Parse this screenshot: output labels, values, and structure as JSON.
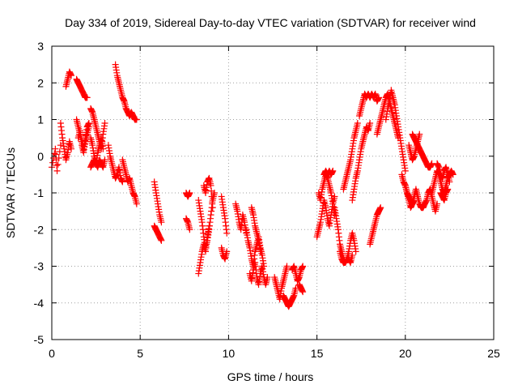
{
  "chart_data": {
    "type": "scatter",
    "title": "Day 334 of 2019, Sidereal Day-to-day VTEC variation (SDTVAR) for receiver wind",
    "xlabel": "GPS time / hours",
    "ylabel": "SDTVAR / TECUs",
    "xlim": [
      0,
      25
    ],
    "ylim": [
      -5,
      3
    ],
    "xticks": [
      0,
      5,
      10,
      15,
      20,
      25
    ],
    "yticks": [
      -5,
      -4,
      -3,
      -2,
      -1,
      0,
      1,
      2,
      3
    ],
    "grid": true,
    "marker": "+",
    "color": "#ff0000",
    "series_segments": [
      {
        "x": [
          0.0,
          0.2,
          0.3,
          0.5
        ],
        "y": [
          -0.3,
          0.2,
          -0.4,
          0.3
        ]
      },
      {
        "x": [
          0.5,
          0.6,
          0.7,
          0.8,
          0.9,
          1.0,
          1.1
        ],
        "y": [
          0.9,
          0.5,
          0.2,
          -0.1,
          0.1,
          0.4,
          0.2
        ]
      },
      {
        "x": [
          0.8,
          0.9,
          1.0,
          1.1
        ],
        "y": [
          1.9,
          2.1,
          2.3,
          2.2
        ]
      },
      {
        "x": [
          1.4,
          1.5,
          1.6,
          1.7,
          1.8,
          1.9,
          2.0
        ],
        "y": [
          2.1,
          2.0,
          1.9,
          1.8,
          1.7,
          1.6,
          1.6
        ]
      },
      {
        "x": [
          1.4,
          1.5,
          1.6,
          1.7,
          1.8,
          1.9,
          2.0,
          2.1
        ],
        "y": [
          1.0,
          0.8,
          0.6,
          0.4,
          0.2,
          0.5,
          0.8,
          0.9
        ]
      },
      {
        "x": [
          1.5,
          1.6,
          1.7,
          1.8,
          1.9,
          2.0,
          2.1
        ],
        "y": [
          0.5,
          0.7,
          0.3,
          0.1,
          0.4,
          0.6,
          0.8
        ]
      },
      {
        "x": [
          2.2,
          2.3,
          2.4,
          2.5,
          2.6,
          2.7,
          2.8,
          2.9,
          3.0
        ],
        "y": [
          1.3,
          1.2,
          1.0,
          0.8,
          0.6,
          0.4,
          0.2,
          0.6,
          0.9
        ]
      },
      {
        "x": [
          2.2,
          2.3,
          2.4,
          2.5,
          2.6,
          2.7,
          2.8,
          2.9
        ],
        "y": [
          0.5,
          0.3,
          0.0,
          -0.2,
          0.1,
          0.3,
          0.5,
          0.2
        ]
      },
      {
        "x": [
          2.2,
          2.3,
          2.4,
          2.5,
          2.6,
          2.7,
          2.8,
          2.9,
          3.0
        ],
        "y": [
          -0.3,
          -0.2,
          -0.1,
          -0.2,
          -0.3,
          -0.1,
          -0.2,
          -0.3,
          -0.1
        ]
      },
      {
        "x": [
          3.2,
          3.3,
          3.4,
          3.5,
          3.6,
          3.7,
          3.8,
          3.9,
          4.0
        ],
        "y": [
          0.3,
          0.0,
          -0.2,
          -0.4,
          -0.6,
          -0.5,
          -0.3,
          -0.6,
          -0.7
        ]
      },
      {
        "x": [
          3.6,
          3.7,
          3.8,
          3.9,
          4.0,
          4.1,
          4.2
        ],
        "y": [
          2.5,
          2.2,
          2.0,
          1.8,
          1.6,
          1.5,
          1.3
        ]
      },
      {
        "x": [
          4.2,
          4.3,
          4.4,
          4.5,
          4.6,
          4.7,
          4.8
        ],
        "y": [
          1.3,
          1.2,
          1.1,
          1.2,
          1.1,
          1.0,
          1.0
        ]
      },
      {
        "x": [
          4.0,
          4.1,
          4.2,
          4.3,
          4.4,
          4.5,
          4.6,
          4.7,
          4.8
        ],
        "y": [
          -0.1,
          -0.3,
          -0.5,
          -0.7,
          -0.6,
          -0.8,
          -1.0,
          -1.1,
          -1.3
        ]
      },
      {
        "x": [
          5.8,
          5.9,
          6.0,
          6.1,
          6.2
        ],
        "y": [
          -0.7,
          -1.0,
          -1.3,
          -1.6,
          -1.8
        ]
      },
      {
        "x": [
          5.8,
          5.9,
          6.0,
          6.1,
          6.2
        ],
        "y": [
          -1.9,
          -2.0,
          -2.1,
          -2.2,
          -2.3
        ]
      },
      {
        "x": [
          7.6,
          7.7,
          7.8
        ],
        "y": [
          -1.0,
          -1.1,
          -1.0
        ]
      },
      {
        "x": [
          7.6,
          7.7,
          7.8
        ],
        "y": [
          -1.7,
          -1.8,
          -2.0
        ]
      },
      {
        "x": [
          8.3,
          8.4,
          8.5,
          8.6,
          8.7,
          8.8,
          8.9,
          9.0,
          9.1,
          9.2
        ],
        "y": [
          -1.2,
          -1.5,
          -1.8,
          -2.2,
          -2.5,
          -2.3,
          -2.0,
          -1.6,
          -1.2,
          -1.0
        ]
      },
      {
        "x": [
          8.6,
          8.7,
          8.8,
          8.9,
          9.0,
          9.1
        ],
        "y": [
          -0.8,
          -1.0,
          -0.7,
          -0.6,
          -0.8,
          -1.4
        ]
      },
      {
        "x": [
          8.3,
          8.4,
          8.5,
          8.6,
          8.7,
          8.8,
          8.9
        ],
        "y": [
          -3.2,
          -2.9,
          -2.6,
          -2.4,
          -2.6,
          -2.2,
          -1.9
        ]
      },
      {
        "x": [
          9.6,
          9.7,
          9.8,
          9.9
        ],
        "y": [
          -1.1,
          -1.4,
          -1.7,
          -2.1
        ]
      },
      {
        "x": [
          9.6,
          9.7,
          9.8,
          9.9
        ],
        "y": [
          -2.5,
          -2.7,
          -2.8,
          -2.6
        ]
      },
      {
        "x": [
          10.4,
          10.5,
          10.6,
          10.7,
          10.8,
          10.9,
          11.0
        ],
        "y": [
          -1.3,
          -1.5,
          -1.8,
          -2.0,
          -1.6,
          -1.8,
          -2.1
        ]
      },
      {
        "x": [
          11.0,
          11.1,
          11.2,
          11.3,
          11.4,
          11.5,
          11.6,
          11.7,
          11.8,
          11.9,
          12.0
        ],
        "y": [
          -2.0,
          -2.3,
          -2.5,
          -2.8,
          -3.0,
          -2.6,
          -2.4,
          -2.2,
          -2.5,
          -2.7,
          -3.0
        ]
      },
      {
        "x": [
          11.2,
          11.3,
          11.4,
          11.5,
          11.6,
          11.7,
          11.8,
          11.9,
          12.0,
          12.1,
          12.2
        ],
        "y": [
          -3.2,
          -3.4,
          -3.1,
          -2.9,
          -3.3,
          -3.5,
          -3.2,
          -3.0,
          -3.3,
          -3.5,
          -3.3
        ]
      },
      {
        "x": [
          11.3,
          11.4,
          11.5,
          11.6,
          11.7,
          11.8
        ],
        "y": [
          -1.4,
          -1.6,
          -1.9,
          -2.1,
          -2.3,
          -2.6
        ]
      },
      {
        "x": [
          12.6,
          12.7,
          12.8,
          12.9,
          13.0,
          13.1,
          13.2,
          13.3
        ],
        "y": [
          -3.3,
          -3.5,
          -3.7,
          -3.9,
          -3.6,
          -3.4,
          -3.2,
          -3.0
        ]
      },
      {
        "x": [
          13.1,
          13.2,
          13.3,
          13.4,
          13.5,
          13.6,
          13.7,
          13.8
        ],
        "y": [
          -3.8,
          -3.9,
          -4.0,
          -4.1,
          -4.0,
          -3.9,
          -3.8,
          -3.6
        ]
      },
      {
        "x": [
          13.6,
          13.7,
          13.8,
          13.9,
          14.0,
          14.1,
          14.2
        ],
        "y": [
          -3.1,
          -3.0,
          -3.2,
          -3.4,
          -3.3,
          -3.1,
          -3.0
        ]
      },
      {
        "x": [
          14.0,
          14.1,
          14.2
        ],
        "y": [
          -3.5,
          -3.6,
          -3.7
        ]
      },
      {
        "x": [
          15.0,
          15.1,
          15.2,
          15.3,
          15.4,
          15.5,
          15.6,
          15.7,
          15.8,
          15.9,
          16.0
        ],
        "y": [
          -2.2,
          -2.0,
          -1.8,
          -1.5,
          -1.2,
          -1.4,
          -1.7,
          -1.9,
          -1.6,
          -1.3,
          -1.1
        ]
      },
      {
        "x": [
          15.1,
          15.2,
          15.3,
          15.4,
          15.5,
          15.6,
          15.7,
          15.8,
          15.9,
          16.0
        ],
        "y": [
          -1.0,
          -1.2,
          -0.9,
          -0.7,
          -0.5,
          -0.6,
          -0.8,
          -1.0,
          -1.3,
          -1.6
        ]
      },
      {
        "x": [
          15.4,
          15.5,
          15.6,
          15.7,
          15.8,
          15.9
        ],
        "y": [
          -0.5,
          -0.4,
          -0.5,
          -0.4,
          -0.5,
          -0.4
        ]
      },
      {
        "x": [
          16.0,
          16.1,
          16.2,
          16.3,
          16.4,
          16.5,
          16.6,
          16.7,
          16.8,
          16.9,
          17.0,
          17.1,
          17.2
        ],
        "y": [
          -1.4,
          -1.7,
          -2.0,
          -2.4,
          -2.6,
          -2.8,
          -2.9,
          -2.8,
          -2.6,
          -2.3,
          -2.1,
          -2.3,
          -2.6
        ]
      },
      {
        "x": [
          16.3,
          16.4,
          16.5,
          16.6,
          16.7,
          16.8,
          16.9,
          17.0
        ],
        "y": [
          -2.6,
          -2.8,
          -2.9,
          -2.9,
          -2.8,
          -2.8,
          -2.9,
          -2.7
        ]
      },
      {
        "x": [
          16.5,
          16.6,
          16.7,
          16.8,
          16.9,
          17.0,
          17.1,
          17.2,
          17.3
        ],
        "y": [
          -0.9,
          -0.7,
          -0.5,
          -0.3,
          -0.1,
          0.2,
          0.5,
          0.7,
          0.9
        ]
      },
      {
        "x": [
          17.0,
          17.1,
          17.2,
          17.3,
          17.4,
          17.5,
          17.6,
          17.7,
          17.8,
          17.9,
          18.0
        ],
        "y": [
          -1.2,
          -0.9,
          -0.6,
          -0.4,
          -0.1,
          0.2,
          0.4,
          0.6,
          0.8,
          0.7,
          0.9
        ]
      },
      {
        "x": [
          17.4,
          17.5,
          17.6,
          17.7,
          17.8,
          17.9,
          18.0,
          18.1,
          18.2,
          18.3,
          18.4,
          18.5
        ],
        "y": [
          1.1,
          1.3,
          1.5,
          1.7,
          1.6,
          1.7,
          1.6,
          1.7,
          1.6,
          1.7,
          1.5,
          1.6
        ]
      },
      {
        "x": [
          18.0,
          18.1,
          18.2,
          18.3,
          18.4,
          18.5,
          18.6
        ],
        "y": [
          -2.4,
          -2.2,
          -2.0,
          -1.8,
          -1.6,
          -1.5,
          -1.4
        ]
      },
      {
        "x": [
          18.4,
          18.5,
          18.6,
          18.7,
          18.8,
          18.9,
          19.0,
          19.1,
          19.2,
          19.3,
          19.4,
          19.5,
          19.6
        ],
        "y": [
          0.6,
          0.8,
          1.0,
          1.2,
          1.4,
          1.6,
          1.7,
          1.5,
          1.3,
          1.1,
          0.9,
          0.7,
          0.5
        ]
      },
      {
        "x": [
          18.9,
          19.0,
          19.1,
          19.2,
          19.3,
          19.4,
          19.5,
          19.6,
          19.7,
          19.8,
          19.9,
          20.0
        ],
        "y": [
          1.0,
          1.3,
          1.5,
          1.8,
          1.6,
          1.4,
          1.1,
          0.8,
          0.5,
          0.2,
          -0.1,
          -0.4
        ]
      },
      {
        "x": [
          19.8,
          19.9,
          20.0,
          20.1,
          20.2,
          20.3,
          20.4,
          20.5
        ],
        "y": [
          -0.5,
          -0.7,
          -0.8,
          -1.0,
          -1.1,
          -1.2,
          -1.3,
          -1.2
        ]
      },
      {
        "x": [
          20.0,
          20.1,
          20.2,
          20.3,
          20.4,
          20.5,
          20.6,
          20.7,
          20.8,
          20.9,
          21.0
        ],
        "y": [
          -0.8,
          -1.0,
          -1.2,
          -1.4,
          -1.3,
          -1.1,
          -0.9,
          -1.1,
          -1.3,
          -1.4,
          -1.4
        ]
      },
      {
        "x": [
          20.2,
          20.3,
          20.4,
          20.5,
          20.6,
          20.7,
          20.8
        ],
        "y": [
          0.3,
          0.1,
          -0.1,
          0.0,
          0.2,
          0.4,
          0.6
        ]
      },
      {
        "x": [
          20.4,
          20.5,
          20.6,
          20.7,
          20.8,
          20.9,
          21.0,
          21.1,
          21.2,
          21.3,
          21.4,
          21.5
        ],
        "y": [
          0.6,
          0.5,
          0.4,
          0.3,
          0.2,
          0.1,
          0.0,
          -0.1,
          -0.2,
          -0.3,
          -0.3,
          -0.2
        ]
      },
      {
        "x": [
          21.0,
          21.1,
          21.2,
          21.3,
          21.4,
          21.5,
          21.6,
          21.7,
          21.8
        ],
        "y": [
          -1.4,
          -1.3,
          -1.2,
          -1.0,
          -0.9,
          -1.1,
          -1.3,
          -1.5,
          -1.3
        ]
      },
      {
        "x": [
          21.5,
          21.6,
          21.7,
          21.8,
          21.9,
          22.0,
          22.1,
          22.2,
          22.3,
          22.4,
          22.5,
          22.6,
          22.7
        ],
        "y": [
          -1.0,
          -0.8,
          -0.6,
          -0.4,
          -0.5,
          -0.7,
          -0.9,
          -1.0,
          -0.8,
          -0.6,
          -0.5,
          -0.4,
          -0.5
        ]
      },
      {
        "x": [
          21.8,
          21.9,
          22.0,
          22.1,
          22.2,
          22.3,
          22.4,
          22.5
        ],
        "y": [
          -0.2,
          -0.3,
          -0.5,
          -0.6,
          -0.4,
          -0.3,
          -0.5,
          -0.7
        ]
      },
      {
        "x": [
          22.0,
          22.1,
          22.2,
          22.3,
          22.4
        ],
        "y": [
          -1.0,
          -1.1,
          -1.2,
          -1.0,
          -0.9
        ]
      }
    ]
  }
}
